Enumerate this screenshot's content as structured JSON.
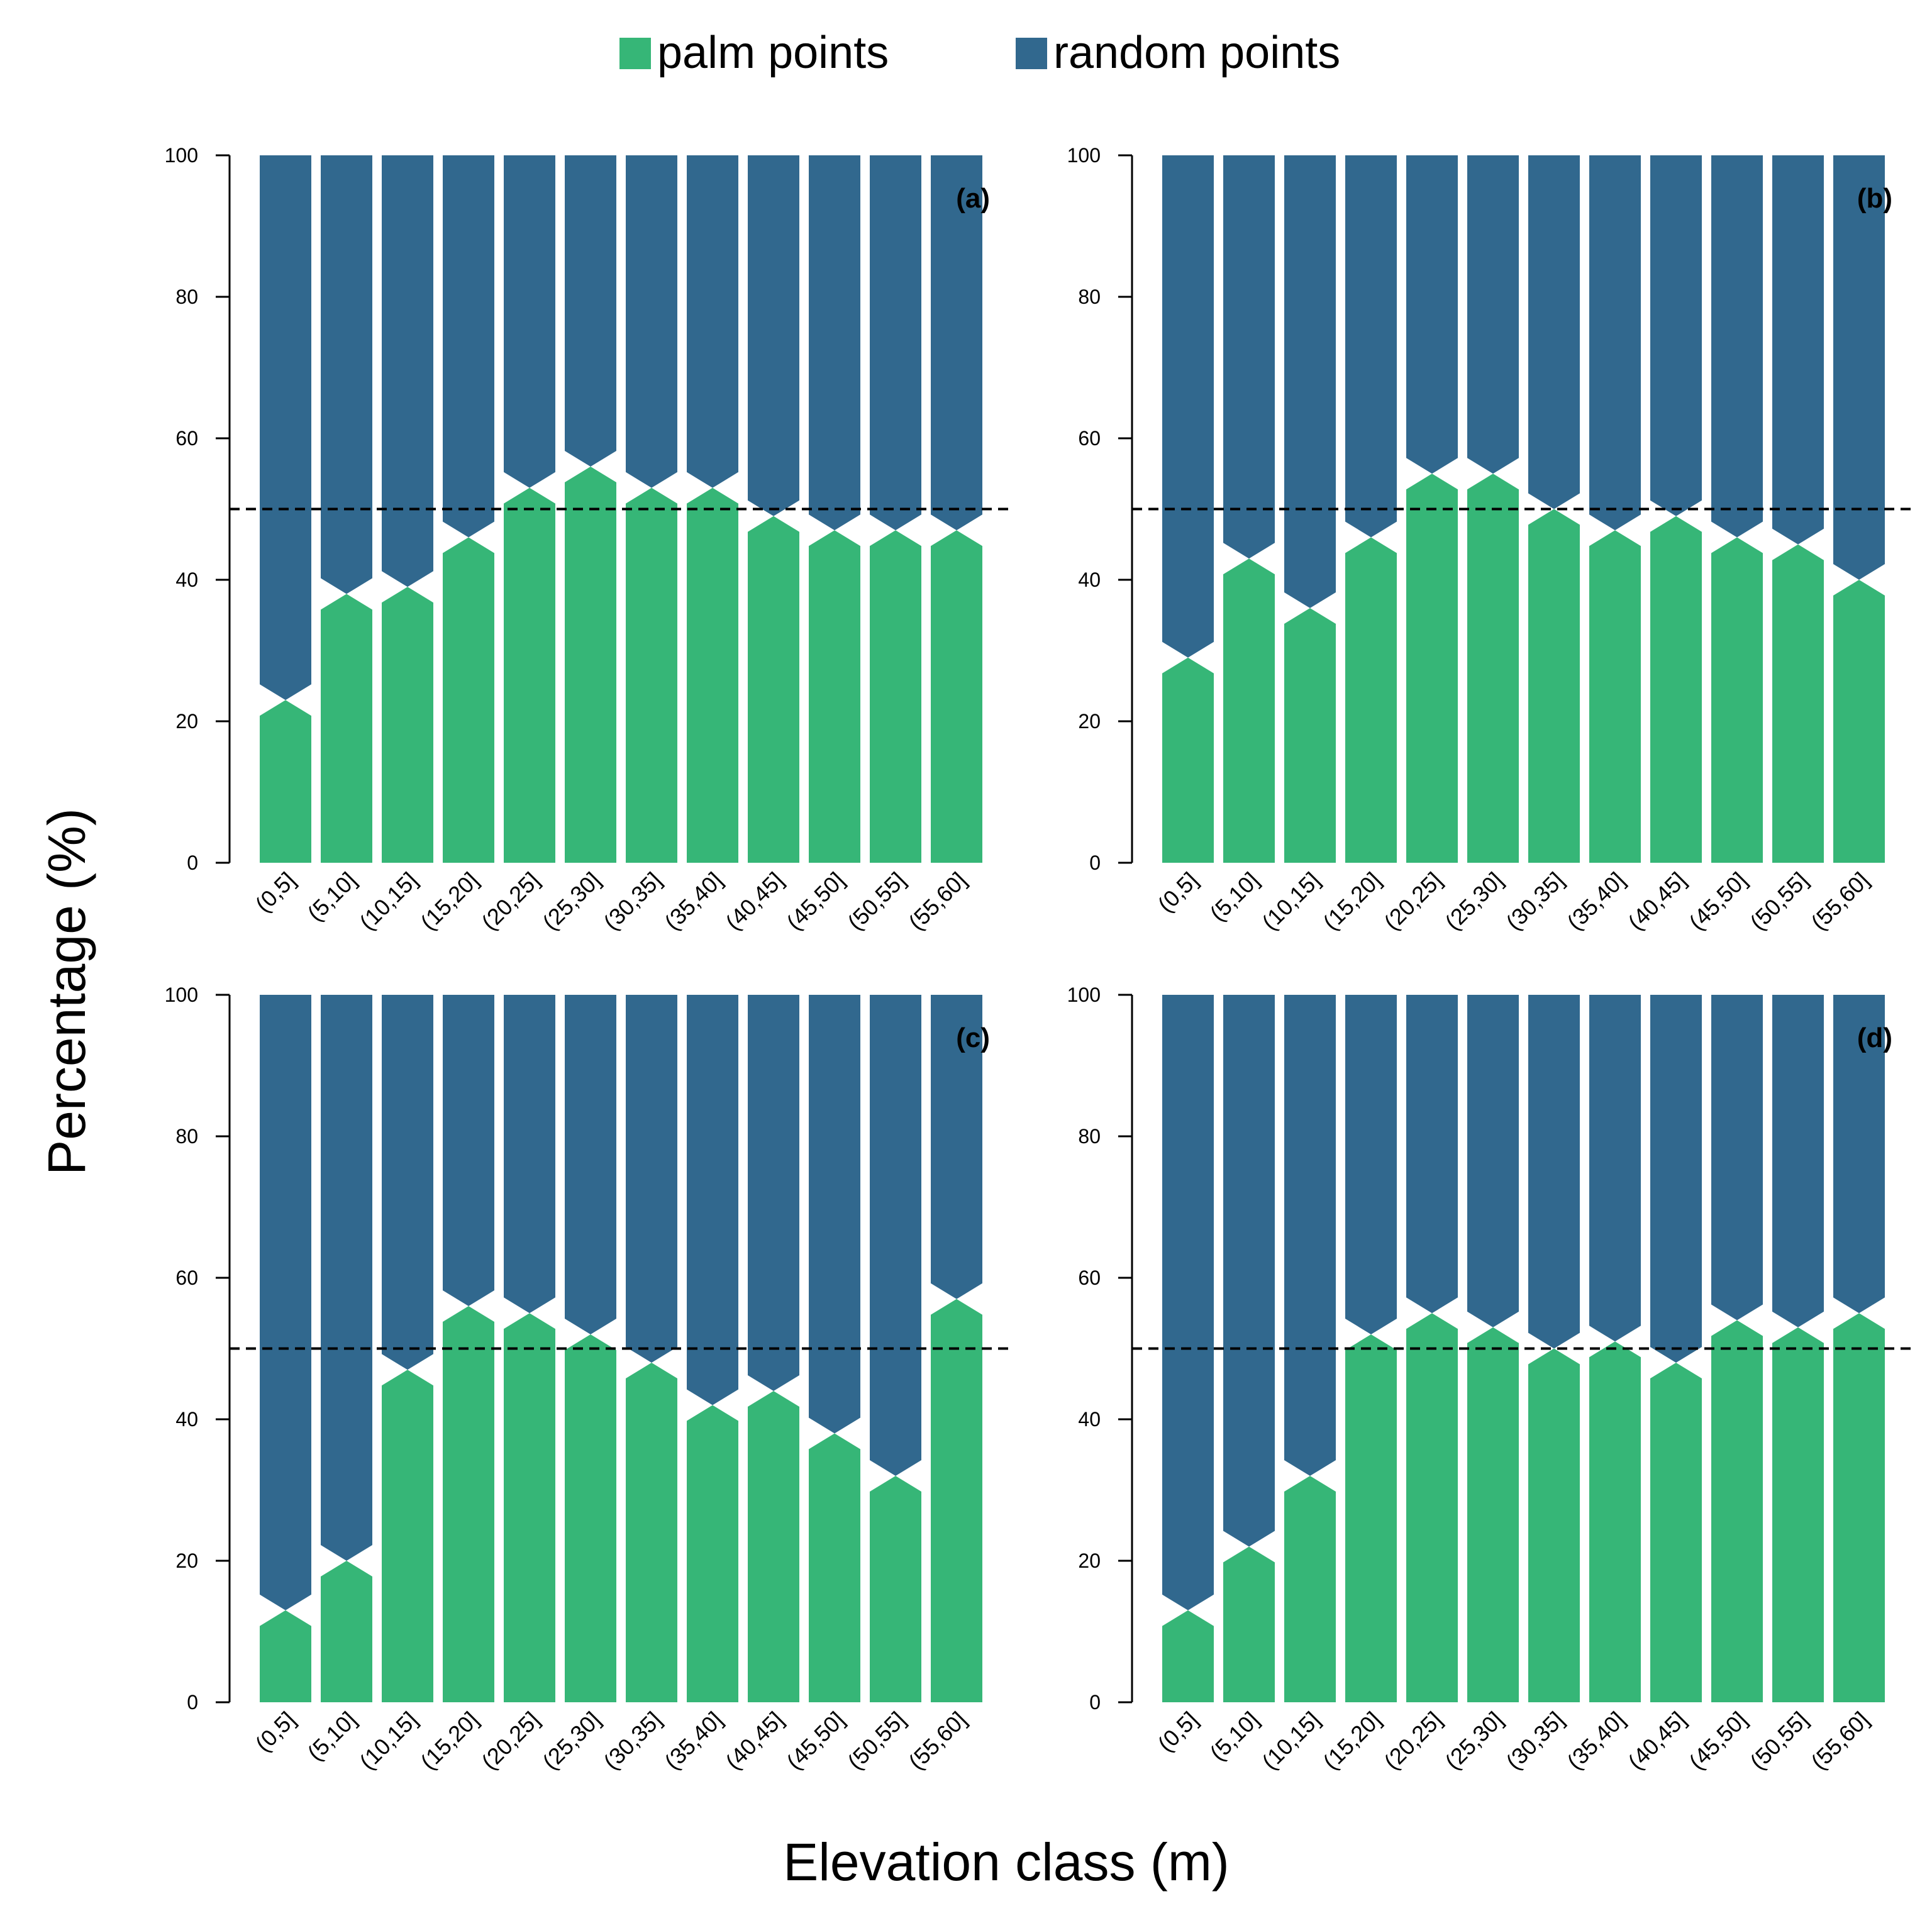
{
  "legend": {
    "items": [
      {
        "label": "palm points",
        "color": "#36b677"
      },
      {
        "label": "random points",
        "color": "#31688e"
      }
    ]
  },
  "xlabel": "Elevation class (m)",
  "ylabel": "Percentage (%)",
  "chart_data": [
    {
      "type": "bar",
      "panel_label": "(a)",
      "categories": [
        "(0,5]",
        "(5,10]",
        "(10,15]",
        "(15,20]",
        "(20,25]",
        "(25,30]",
        "(30,35]",
        "(35,40]",
        "(40,45]",
        "(45,50]",
        "(50,55]",
        "(55,60]"
      ],
      "series": [
        {
          "name": "palm points",
          "values": [
            23,
            38,
            39,
            46,
            53,
            56,
            53,
            53,
            49,
            47,
            47,
            47
          ]
        },
        {
          "name": "random points",
          "values": [
            77,
            62,
            61,
            54,
            47,
            44,
            47,
            47,
            51,
            53,
            53,
            53
          ]
        }
      ],
      "stacked": true,
      "ylim": [
        0,
        100
      ],
      "yticks": [
        0,
        20,
        40,
        60,
        80,
        100
      ],
      "reference_line": 50
    },
    {
      "type": "bar",
      "panel_label": "(b)",
      "categories": [
        "(0,5]",
        "(5,10]",
        "(10,15]",
        "(15,20]",
        "(20,25]",
        "(25,30]",
        "(30,35]",
        "(35,40]",
        "(40,45]",
        "(45,50]",
        "(50,55]",
        "(55,60]"
      ],
      "series": [
        {
          "name": "palm points",
          "values": [
            29,
            43,
            36,
            46,
            55,
            55,
            50,
            47,
            49,
            46,
            45,
            40
          ]
        },
        {
          "name": "random points",
          "values": [
            71,
            57,
            64,
            54,
            45,
            45,
            50,
            53,
            51,
            54,
            55,
            60
          ]
        }
      ],
      "stacked": true,
      "ylim": [
        0,
        100
      ],
      "yticks": [
        0,
        20,
        40,
        60,
        80,
        100
      ],
      "reference_line": 50
    },
    {
      "type": "bar",
      "panel_label": "(c)",
      "categories": [
        "(0,5]",
        "(5,10]",
        "(10,15]",
        "(15,20]",
        "(20,25]",
        "(25,30]",
        "(30,35]",
        "(35,40]",
        "(40,45]",
        "(45,50]",
        "(50,55]",
        "(55,60]"
      ],
      "series": [
        {
          "name": "palm points",
          "values": [
            13,
            20,
            47,
            56,
            55,
            52,
            48,
            42,
            44,
            38,
            32,
            57
          ]
        },
        {
          "name": "random points",
          "values": [
            87,
            80,
            53,
            44,
            45,
            48,
            52,
            58,
            56,
            62,
            68,
            43
          ]
        }
      ],
      "stacked": true,
      "ylim": [
        0,
        100
      ],
      "yticks": [
        0,
        20,
        40,
        60,
        80,
        100
      ],
      "reference_line": 50
    },
    {
      "type": "bar",
      "panel_label": "(d)",
      "categories": [
        "(0,5]",
        "(5,10]",
        "(10,15]",
        "(15,20]",
        "(20,25]",
        "(25,30]",
        "(30,35]",
        "(35,40]",
        "(40,45]",
        "(45,50]",
        "(50,55]",
        "(55,60]"
      ],
      "series": [
        {
          "name": "palm points",
          "values": [
            13,
            22,
            32,
            52,
            55,
            53,
            50,
            51,
            48,
            54,
            53,
            55
          ]
        },
        {
          "name": "random points",
          "values": [
            87,
            78,
            68,
            48,
            45,
            47,
            50,
            49,
            52,
            46,
            47,
            45
          ]
        }
      ],
      "stacked": true,
      "ylim": [
        0,
        100
      ],
      "yticks": [
        0,
        20,
        40,
        60,
        80,
        100
      ],
      "reference_line": 50
    }
  ]
}
